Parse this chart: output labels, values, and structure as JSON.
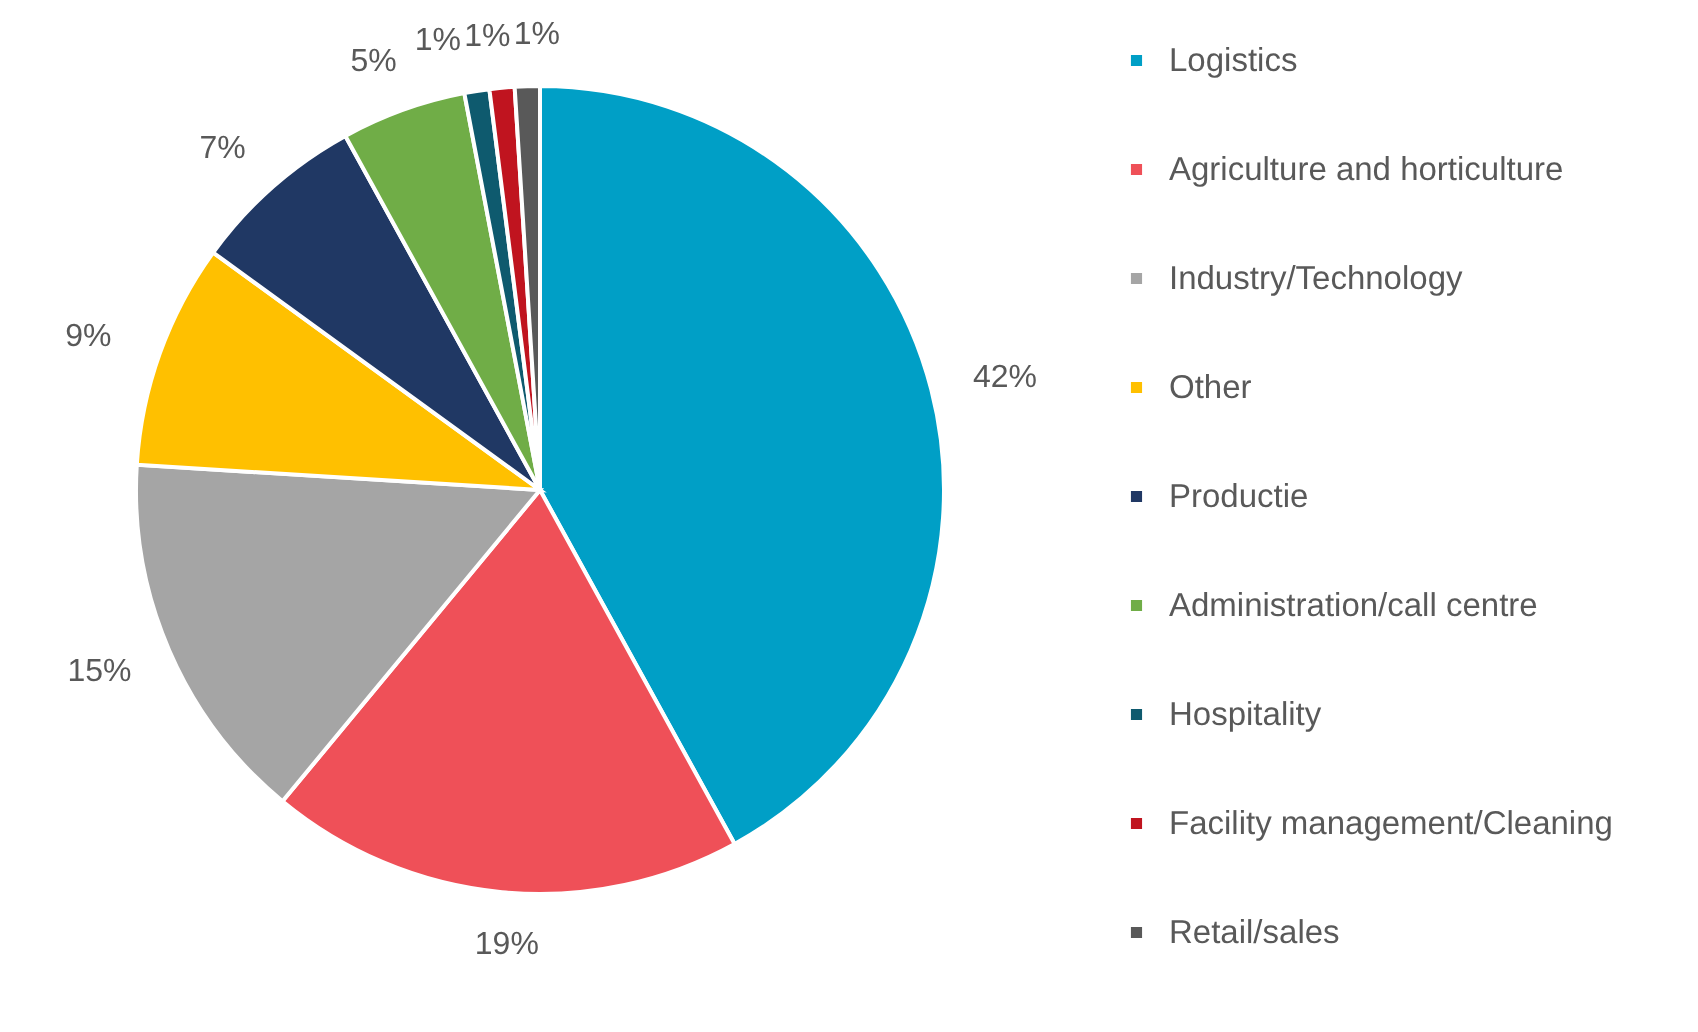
{
  "chart_data": {
    "type": "pie",
    "categories": [
      "Logistics",
      "Agriculture and horticulture",
      "Industry/Technology",
      "Other",
      "Productie",
      "Administration/call centre",
      "Hospitality",
      "Facility management/Cleaning",
      "Retail/sales"
    ],
    "values": [
      42,
      19,
      15,
      9,
      7,
      5,
      1,
      1,
      1
    ],
    "value_labels": [
      "42%",
      "19%",
      "15%",
      "9%",
      "7%",
      "5%",
      "1%",
      "1%",
      "1%"
    ],
    "colors": [
      "#009fc6",
      "#ef5058",
      "#a5a5a5",
      "#ffc000",
      "#203864",
      "#70ad47",
      "#0e5a6e",
      "#c0141f",
      "#595959"
    ],
    "legend": "right"
  }
}
